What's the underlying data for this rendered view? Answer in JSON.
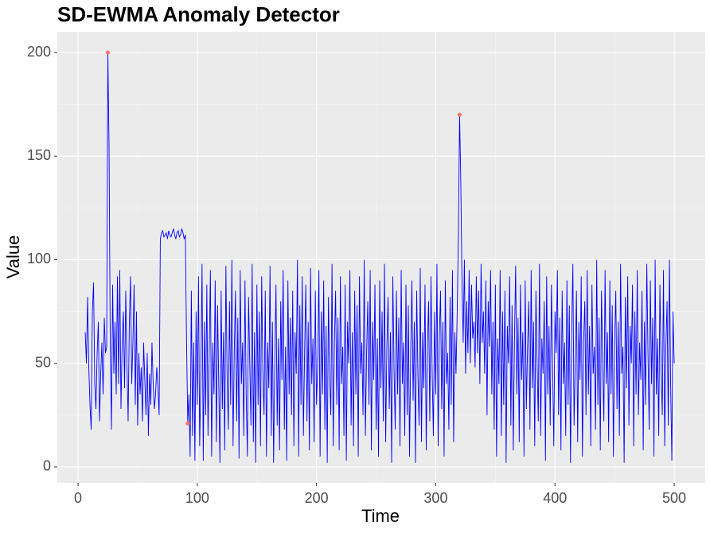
{
  "chart_data": {
    "type": "line",
    "title": "SD-EWMA Anomaly Detector",
    "x_label": "Time",
    "y_label": "Value",
    "xlim": [
      -17.4,
      526
    ],
    "ylim": [
      -7.7,
      210
    ],
    "xticks": [
      0,
      100,
      200,
      300,
      400,
      500
    ],
    "yticks": [
      0,
      50,
      100,
      150,
      200
    ],
    "grid": true,
    "series": [
      {
        "color": "#0000ff",
        "x": [
          6,
          7,
          8,
          9,
          10,
          11,
          12,
          13,
          14,
          15,
          16,
          17,
          18,
          19,
          20,
          21,
          22,
          23,
          24,
          25,
          26,
          27,
          28,
          29,
          30,
          31,
          32,
          33,
          34,
          35,
          36,
          37,
          38,
          39,
          40,
          41,
          42,
          43,
          44,
          45,
          46,
          47,
          48,
          49,
          50,
          51,
          52,
          53,
          54,
          55,
          56,
          57,
          58,
          59,
          60,
          61,
          62,
          63,
          64,
          65,
          66,
          67,
          68,
          69,
          70,
          71,
          72,
          73,
          74,
          75,
          76,
          77,
          78,
          79,
          80,
          81,
          82,
          83,
          84,
          85,
          86,
          87,
          88,
          89,
          90,
          91,
          92,
          93,
          94,
          95,
          96,
          97,
          98,
          99,
          100,
          101,
          102,
          103,
          104,
          105,
          106,
          107,
          108,
          109,
          110,
          111,
          112,
          113,
          114,
          115,
          116,
          117,
          118,
          119,
          120,
          121,
          122,
          123,
          124,
          125,
          126,
          127,
          128,
          129,
          130,
          131,
          132,
          133,
          134,
          135,
          136,
          137,
          138,
          139,
          140,
          141,
          142,
          143,
          144,
          145,
          146,
          147,
          148,
          149,
          150,
          151,
          152,
          153,
          154,
          155,
          156,
          157,
          158,
          159,
          160,
          161,
          162,
          163,
          164,
          165,
          166,
          167,
          168,
          169,
          170,
          171,
          172,
          173,
          174,
          175,
          176,
          177,
          178,
          179,
          180,
          181,
          182,
          183,
          184,
          185,
          186,
          187,
          188,
          189,
          190,
          191,
          192,
          193,
          194,
          195,
          196,
          197,
          198,
          199,
          200,
          201,
          202,
          203,
          204,
          205,
          206,
          207,
          208,
          209,
          210,
          211,
          212,
          213,
          214,
          215,
          216,
          217,
          218,
          219,
          220,
          221,
          222,
          223,
          224,
          225,
          226,
          227,
          228,
          229,
          230,
          231,
          232,
          233,
          234,
          235,
          236,
          237,
          238,
          239,
          240,
          241,
          242,
          243,
          244,
          245,
          246,
          247,
          248,
          249,
          250,
          251,
          252,
          253,
          254,
          255,
          256,
          257,
          258,
          259,
          260,
          261,
          262,
          263,
          264,
          265,
          266,
          267,
          268,
          269,
          270,
          271,
          272,
          273,
          274,
          275,
          276,
          277,
          278,
          279,
          280,
          281,
          282,
          283,
          284,
          285,
          286,
          287,
          288,
          289,
          290,
          291,
          292,
          293,
          294,
          295,
          296,
          297,
          298,
          299,
          300,
          301,
          302,
          303,
          304,
          305,
          306,
          307,
          308,
          309,
          310,
          311,
          312,
          313,
          314,
          315,
          316,
          317,
          318,
          319,
          320,
          321,
          322,
          323,
          324,
          325,
          326,
          327,
          328,
          329,
          330,
          331,
          332,
          333,
          334,
          335,
          336,
          337,
          338,
          339,
          340,
          341,
          342,
          343,
          344,
          345,
          346,
          347,
          348,
          349,
          350,
          351,
          352,
          353,
          354,
          355,
          356,
          357,
          358,
          359,
          360,
          361,
          362,
          363,
          364,
          365,
          366,
          367,
          368,
          369,
          370,
          371,
          372,
          373,
          374,
          375,
          376,
          377,
          378,
          379,
          380,
          381,
          382,
          383,
          384,
          385,
          386,
          387,
          388,
          389,
          390,
          391,
          392,
          393,
          394,
          395,
          396,
          397,
          398,
          399,
          400,
          401,
          402,
          403,
          404,
          405,
          406,
          407,
          408,
          409,
          410,
          411,
          412,
          413,
          414,
          415,
          416,
          417,
          418,
          419,
          420,
          421,
          422,
          423,
          424,
          425,
          426,
          427,
          428,
          429,
          430,
          431,
          432,
          433,
          434,
          435,
          436,
          437,
          438,
          439,
          440,
          441,
          442,
          443,
          444,
          445,
          446,
          447,
          448,
          449,
          450,
          451,
          452,
          453,
          454,
          455,
          456,
          457,
          458,
          459,
          460,
          461,
          462,
          463,
          464,
          465,
          466,
          467,
          468,
          469,
          470,
          471,
          472,
          473,
          474,
          475,
          476,
          477,
          478,
          479,
          480,
          481,
          482,
          483,
          484,
          485,
          486,
          487,
          488,
          489,
          490,
          491,
          492,
          493,
          494,
          495,
          496,
          497,
          498,
          499,
          500
        ],
        "values": [
          65,
          50,
          82,
          48,
          30,
          18,
          75,
          89,
          40,
          28,
          55,
          70,
          22,
          45,
          60,
          35,
          72,
          55,
          58,
          200,
          155,
          60,
          18,
          88,
          45,
          70,
          35,
          92,
          40,
          95,
          28,
          60,
          75,
          38,
          85,
          50,
          22,
          70,
          92,
          40,
          60,
          88,
          30,
          75,
          20,
          55,
          35,
          48,
          22,
          60,
          42,
          25,
          55,
          15,
          45,
          30,
          60,
          40,
          28,
          35,
          48,
          38,
          25,
          110,
          113,
          114,
          111,
          112,
          113,
          110,
          114,
          112,
          111,
          113,
          115,
          112,
          110,
          113,
          114,
          111,
          112,
          115,
          113,
          110,
          112,
          60,
          21,
          35,
          5,
          85,
          15,
          60,
          3,
          75,
          30,
          92,
          10,
          45,
          98,
          3,
          70,
          25,
          88,
          15,
          55,
          95,
          5,
          60,
          35,
          90,
          12,
          78,
          40,
          2,
          85,
          28,
          65,
          8,
          97,
          45,
          18,
          80,
          30,
          100,
          10,
          55,
          85,
          22,
          72,
          4,
          95,
          40,
          60,
          15,
          90,
          35,
          5,
          82,
          50,
          20,
          98,
          12,
          65,
          2,
          88,
          30,
          75,
          10,
          92,
          45,
          25,
          85,
          5,
          60,
          38,
          97,
          15,
          70,
          2,
          50,
          88,
          20,
          62,
          8,
          80,
          42,
          95,
          18,
          58,
          3,
          90,
          35,
          72,
          25,
          85,
          10,
          65,
          45,
          100,
          5,
          78,
          30,
          92,
          15,
          55,
          88,
          22,
          70,
          8,
          96,
          40,
          62,
          12,
          85,
          30,
          50,
          95,
          5,
          75,
          35,
          90,
          18,
          68,
          2,
          82,
          45,
          25,
          98,
          10,
          60,
          85,
          30,
          72,
          8,
          92,
          40,
          58,
          15,
          88,
          3,
          70,
          50,
          95,
          20,
          65,
          10,
          85,
          35,
          78,
          5,
          92,
          45,
          60,
          25,
          100,
          15,
          55,
          80,
          30,
          95,
          8,
          70,
          42,
          88,
          18,
          62,
          5,
          90,
          38,
          75,
          22,
          98,
          12,
          58,
          82,
          28,
          65,
          2,
          92,
          48,
          18,
          85,
          35,
          72,
          10,
          95,
          40,
          60,
          15,
          88,
          25,
          78,
          5,
          55,
          90,
          32,
          70,
          2,
          85,
          45,
          20,
          96,
          12,
          65,
          38,
          88,
          8,
          58,
          80,
          22,
          92,
          45,
          15,
          75,
          35,
          98,
          10,
          62,
          85,
          28,
          70,
          5,
          90,
          40,
          55,
          18,
          82,
          30,
          95,
          12,
          65,
          45,
          75,
          113,
          170,
          138,
          90,
          60,
          100,
          45,
          80,
          55,
          95,
          50,
          88,
          62,
          70,
          48,
          92,
          55,
          85,
          40,
          98,
          60,
          75,
          45,
          90,
          25,
          80,
          58,
          95,
          35,
          70,
          18,
          88,
          5,
          62,
          40,
          95,
          15,
          75,
          30,
          85,
          2,
          68,
          50,
          92,
          20,
          78,
          8,
          60,
          97,
          35,
          72,
          12,
          88,
          42,
          65,
          5,
          90,
          28,
          58,
          80,
          18,
          95,
          38,
          70,
          10,
          85,
          50,
          22,
          98,
          15,
          62,
          45,
          80,
          3,
          92,
          35,
          68,
          20,
          88,
          48,
          10,
          75,
          55,
          95,
          25,
          72,
          8,
          85,
          40,
          60,
          15,
          90,
          30,
          78,
          2,
          65,
          98,
          20,
          50,
          85,
          12,
          70,
          42,
          92,
          5,
          60,
          80,
          25,
          95,
          35,
          68,
          10,
          88,
          45,
          58,
          18,
          100,
          30,
          72,
          8,
          85,
          50,
          22,
          95,
          40,
          65,
          12,
          90,
          35,
          78,
          5,
          60,
          85,
          28,
          70,
          15,
          98,
          45,
          58,
          2,
          82,
          38,
          92,
          20,
          68,
          50,
          88,
          10,
          75,
          35,
          95,
          25,
          60,
          42,
          85,
          8,
          70,
          30,
          98,
          55,
          18,
          90,
          40,
          72,
          5,
          100,
          35,
          62,
          15,
          88,
          48,
          25,
          95,
          10,
          58,
          80,
          20,
          100,
          40,
          3,
          75,
          50
        ]
      }
    ],
    "anomalies": {
      "color": "#f8766d",
      "x": [
        25,
        92,
        320
      ],
      "values": [
        200,
        21,
        170
      ]
    }
  }
}
